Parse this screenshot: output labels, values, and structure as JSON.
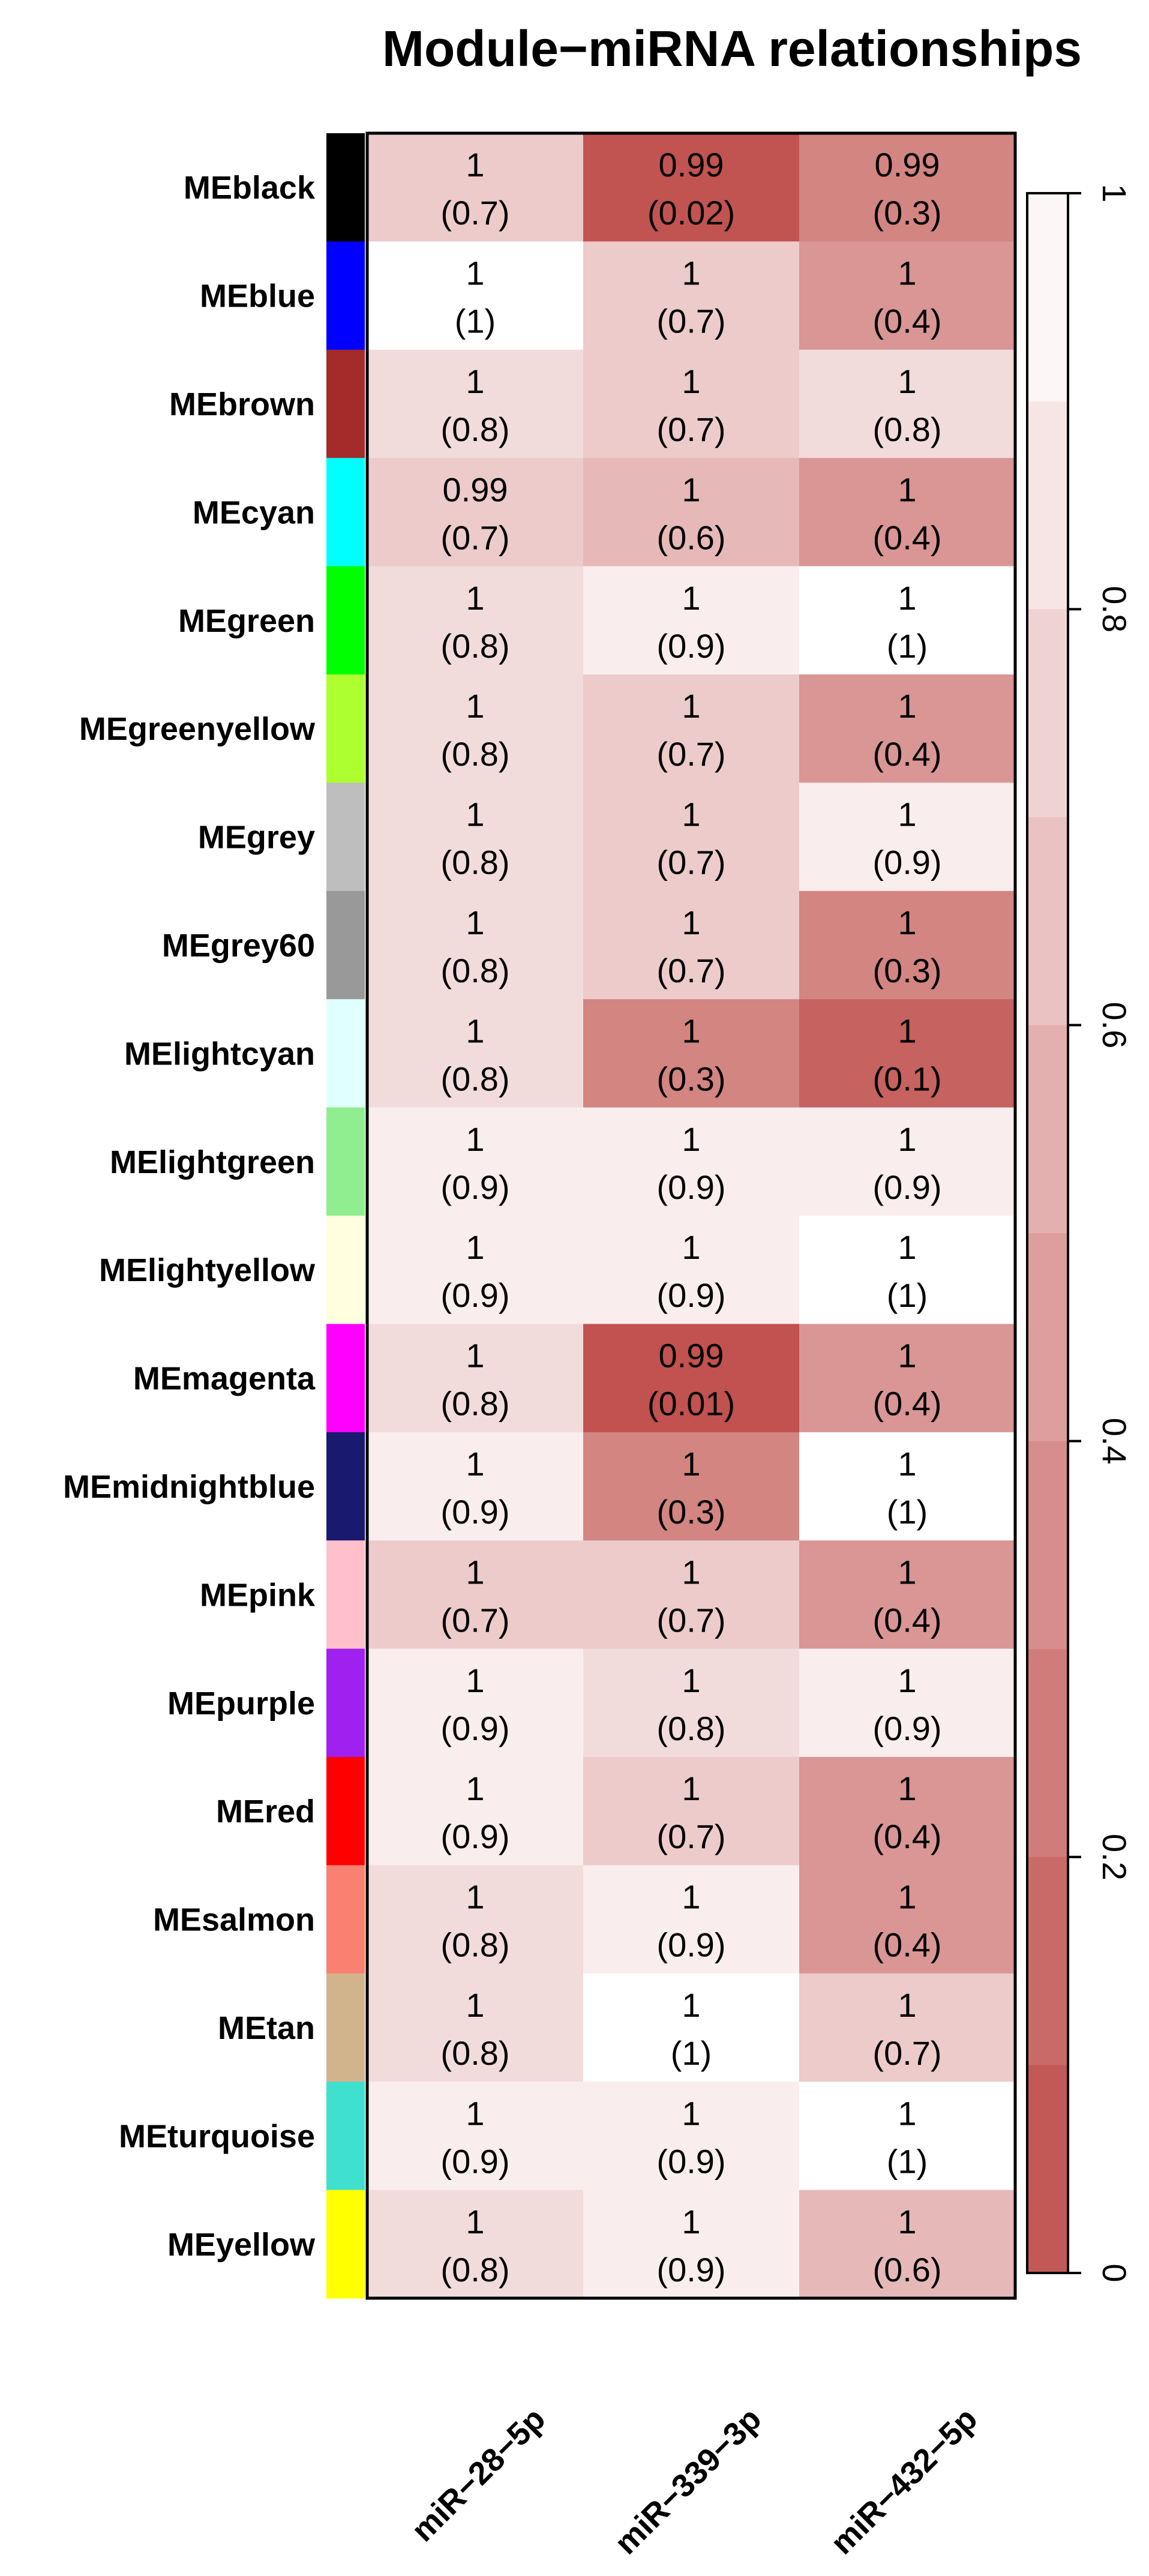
{
  "chart_data": {
    "type": "heatmap",
    "title": "Module−miRNA relationships",
    "rows": [
      "MEblack",
      "MEblue",
      "MEbrown",
      "MEcyan",
      "MEgreen",
      "MEgreenyellow",
      "MEgrey",
      "MEgrey60",
      "MElightcyan",
      "MElightgreen",
      "MElightyellow",
      "MEmagenta",
      "MEmidnightblue",
      "MEpink",
      "MEpurple",
      "MEred",
      "MEsalmon",
      "MEtan",
      "MEturquoise",
      "MEyellow"
    ],
    "row_colors": [
      "#000000",
      "#0000FF",
      "#A52A2A",
      "#00FFFF",
      "#00FF00",
      "#ADFF2F",
      "#BEBEBE",
      "#999999",
      "#E0FFFF",
      "#90EE90",
      "#FFFFE0",
      "#FF00FF",
      "#191970",
      "#FFC0CB",
      "#A020F0",
      "#FF0000",
      "#FA8072",
      "#D2B48C",
      "#40E0D0",
      "#FFFF00"
    ],
    "columns": [
      "miR−28−5p",
      "miR−339−3p",
      "miR−432−5p"
    ],
    "correlation_text": [
      [
        "1",
        "0.99",
        "0.99"
      ],
      [
        "1",
        "1",
        "1"
      ],
      [
        "1",
        "1",
        "1"
      ],
      [
        "0.99",
        "1",
        "1"
      ],
      [
        "1",
        "1",
        "1"
      ],
      [
        "1",
        "1",
        "1"
      ],
      [
        "1",
        "1",
        "1"
      ],
      [
        "1",
        "1",
        "1"
      ],
      [
        "1",
        "1",
        "1"
      ],
      [
        "1",
        "1",
        "1"
      ],
      [
        "1",
        "1",
        "1"
      ],
      [
        "1",
        "0.99",
        "1"
      ],
      [
        "1",
        "1",
        "1"
      ],
      [
        "1",
        "1",
        "1"
      ],
      [
        "1",
        "1",
        "1"
      ],
      [
        "1",
        "1",
        "1"
      ],
      [
        "1",
        "1",
        "1"
      ],
      [
        "1",
        "1",
        "1"
      ],
      [
        "1",
        "1",
        "1"
      ],
      [
        "1",
        "1",
        "1"
      ]
    ],
    "pvalue_text": [
      [
        "(0.7)",
        "(0.02)",
        "(0.3)"
      ],
      [
        "(1)",
        "(0.7)",
        "(0.4)"
      ],
      [
        "(0.8)",
        "(0.7)",
        "(0.8)"
      ],
      [
        "(0.7)",
        "(0.6)",
        "(0.4)"
      ],
      [
        "(0.8)",
        "(0.9)",
        "(1)"
      ],
      [
        "(0.8)",
        "(0.7)",
        "(0.4)"
      ],
      [
        "(0.8)",
        "(0.7)",
        "(0.9)"
      ],
      [
        "(0.8)",
        "(0.7)",
        "(0.3)"
      ],
      [
        "(0.8)",
        "(0.3)",
        "(0.1)"
      ],
      [
        "(0.9)",
        "(0.9)",
        "(0.9)"
      ],
      [
        "(0.9)",
        "(0.9)",
        "(1)"
      ],
      [
        "(0.8)",
        "(0.01)",
        "(0.4)"
      ],
      [
        "(0.9)",
        "(0.3)",
        "(1)"
      ],
      [
        "(0.7)",
        "(0.7)",
        "(0.4)"
      ],
      [
        "(0.9)",
        "(0.8)",
        "(0.9)"
      ],
      [
        "(0.9)",
        "(0.7)",
        "(0.4)"
      ],
      [
        "(0.8)",
        "(0.9)",
        "(0.4)"
      ],
      [
        "(0.8)",
        "(1)",
        "(0.7)"
      ],
      [
        "(0.9)",
        "(0.9)",
        "(1)"
      ],
      [
        "(0.8)",
        "(0.9)",
        "(0.6)"
      ]
    ],
    "pvalues": [
      [
        0.7,
        0.02,
        0.3
      ],
      [
        1,
        0.7,
        0.4
      ],
      [
        0.8,
        0.7,
        0.8
      ],
      [
        0.7,
        0.6,
        0.4
      ],
      [
        0.8,
        0.9,
        1
      ],
      [
        0.8,
        0.7,
        0.4
      ],
      [
        0.8,
        0.7,
        0.9
      ],
      [
        0.8,
        0.7,
        0.3
      ],
      [
        0.8,
        0.3,
        0.1
      ],
      [
        0.9,
        0.9,
        0.9
      ],
      [
        0.9,
        0.9,
        1
      ],
      [
        0.8,
        0.01,
        0.4
      ],
      [
        0.9,
        0.3,
        1
      ],
      [
        0.7,
        0.7,
        0.4
      ],
      [
        0.9,
        0.8,
        0.9
      ],
      [
        0.9,
        0.7,
        0.4
      ],
      [
        0.8,
        0.9,
        0.4
      ],
      [
        0.8,
        1,
        0.7
      ],
      [
        0.9,
        0.9,
        1
      ],
      [
        0.8,
        0.9,
        0.6
      ]
    ],
    "colorbar": {
      "range": [
        0,
        1
      ],
      "ticks": [
        0,
        0.2,
        0.4,
        0.6,
        0.8,
        1
      ],
      "tick_labels": [
        "0",
        "0.2",
        "0.4",
        "0.6",
        "0.8",
        "1"
      ],
      "color_low": "#C0504D",
      "color_high": "#FFFFFF"
    }
  }
}
